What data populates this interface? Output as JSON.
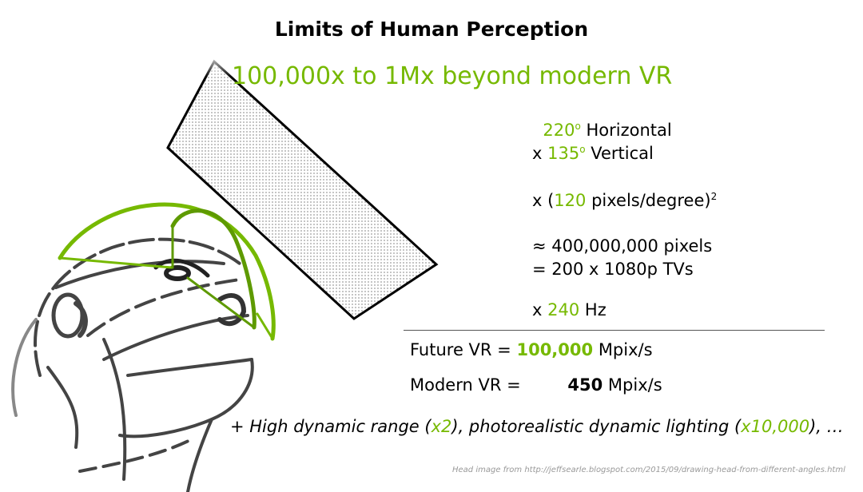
{
  "slide": {
    "title": "Limits of Human Perception",
    "subtitle": "100,000x to 1Mx beyond modern VR",
    "accent_color": "#76b900",
    "calculation": {
      "horizontal": {
        "prefix": "",
        "value": "220",
        "degree": "o",
        "label": "Horizontal"
      },
      "vertical": {
        "prefix": "x",
        "value": "135",
        "degree": "o",
        "label": "Vertical"
      },
      "density": {
        "prefix": "x (",
        "value": "120",
        "label": "pixels/degree)",
        "exponent": "2"
      },
      "pixels": "≈ 400,000,000 pixels",
      "tvs": "= 200 x 1080p TVs",
      "rate": {
        "prefix": "x",
        "value": "240",
        "label": "Hz"
      }
    },
    "future_vr": {
      "label": "Future VR =",
      "value": "100,000",
      "unit": "Mpix/s"
    },
    "modern_vr": {
      "label": "Modern VR =",
      "value": "450",
      "unit": "Mpix/s"
    },
    "extras": {
      "p1": "+ High dynamic range (",
      "v1": "x2",
      "p2": "), photorealistic dynamic lighting (",
      "v2": "x10,000",
      "p3": "), …"
    },
    "credit": "Head image from http://jeffsearle.blogspot.com/2015/09/drawing-head-from-different-angles.html"
  }
}
